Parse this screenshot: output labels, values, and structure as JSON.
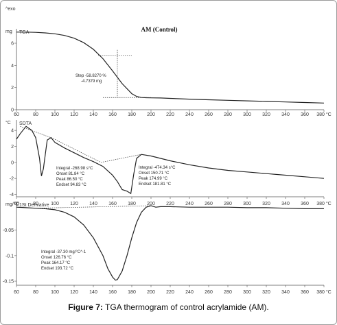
{
  "exo_label": "^exo",
  "caption": {
    "label": "Figure 7:",
    "text": "TGA thermogram of control acrylamide (AM)."
  },
  "chart_data": [
    {
      "type": "line",
      "title": "AM (Control)",
      "series_label": "TGA",
      "y_unit": "mg",
      "x_ticks": [
        "60",
        "80",
        "100",
        "120",
        "140",
        "160",
        "180",
        "200",
        "220",
        "240",
        "260",
        "280",
        "300",
        "320",
        "340",
        "360",
        "380 °C"
      ],
      "y_ticks": [
        "0",
        "2",
        "4",
        "6"
      ],
      "xlim": [
        60,
        380
      ],
      "ylim": [
        0,
        7.3
      ],
      "series": [
        {
          "x": [
            60,
            70,
            80,
            90,
            100,
            110,
            120,
            130,
            140,
            150,
            160,
            170,
            180,
            185,
            190,
            195,
            200,
            210,
            220,
            240,
            260,
            280,
            300,
            320,
            340,
            360,
            380
          ],
          "values": [
            7.0,
            7.0,
            6.98,
            6.93,
            6.85,
            6.7,
            6.45,
            6.05,
            5.45,
            4.6,
            3.5,
            2.35,
            1.45,
            1.2,
            1.1,
            1.08,
            1.07,
            1.06,
            1.02,
            0.95,
            0.9,
            0.85,
            0.8,
            0.75,
            0.7,
            0.65,
            0.6
          ]
        }
      ],
      "annotations": [
        "Step  -58.8270 %",
        "-4.7379 mg"
      ]
    },
    {
      "type": "line",
      "series_label": "SDTA",
      "y_unit": "°C",
      "x_ticks": [
        "60",
        "80",
        "100",
        "120",
        "140",
        "160",
        "180",
        "200",
        "220",
        "240",
        "260",
        "280",
        "300",
        "320",
        "340",
        "360",
        "380 °C"
      ],
      "y_ticks": [
        "-4",
        "-2",
        "0",
        "2",
        "4"
      ],
      "xlim": [
        60,
        380
      ],
      "ylim": [
        -4.3,
        5.3
      ],
      "series": [
        {
          "x": [
            60,
            64,
            70,
            76,
            80,
            84,
            86,
            88,
            90,
            92,
            96,
            100,
            110,
            120,
            130,
            140,
            150,
            160,
            165,
            170,
            175,
            179,
            182,
            185,
            190,
            200,
            220,
            240,
            260,
            280,
            300,
            320,
            340,
            360,
            380
          ],
          "values": [
            2.9,
            3.6,
            4.5,
            4.0,
            3.1,
            0.5,
            -1.7,
            -0.8,
            1.0,
            2.8,
            3.1,
            2.5,
            1.8,
            1.2,
            0.6,
            0.1,
            -0.5,
            -1.6,
            -2.4,
            -3.4,
            -3.6,
            -3.9,
            -1.5,
            0.5,
            1.0,
            0.8,
            0.2,
            -0.3,
            -0.7,
            -1.0,
            -1.2,
            -1.4,
            -1.6,
            -1.8,
            -2.0
          ]
        }
      ],
      "annotations": [
        [
          "Integral  -268.98 s°C",
          "Onset   81.84 °C",
          "Peak    86.50 °C",
          "Endset  94.83 °C"
        ],
        [
          "Integral  -474.34 s°C",
          "Onset   150.71 °C",
          "Peak    174.99 °C",
          "Endset  181.81 °C"
        ]
      ]
    },
    {
      "type": "line",
      "series_label": "1St Derivative",
      "y_unit": "mg/°C",
      "x_ticks": [
        "60",
        "80",
        "100",
        "120",
        "140",
        "160",
        "180",
        "200",
        "220",
        "240",
        "260",
        "280",
        "300",
        "320",
        "340",
        "360",
        "380 °C"
      ],
      "y_ticks": [
        "-0.05",
        "-0.1",
        "-0.15"
      ],
      "xlim": [
        60,
        380
      ],
      "ylim": [
        -0.158,
        0.006
      ],
      "series": [
        {
          "x": [
            60,
            70,
            80,
            90,
            100,
            110,
            120,
            130,
            140,
            150,
            155,
            160,
            163,
            165,
            170,
            175,
            180,
            185,
            190,
            195,
            200,
            205,
            210,
            220,
            240,
            260,
            280,
            300,
            320,
            340,
            360,
            380
          ],
          "values": [
            -0.005,
            -0.006,
            -0.007,
            -0.008,
            -0.01,
            -0.015,
            -0.024,
            -0.04,
            -0.065,
            -0.1,
            -0.125,
            -0.142,
            -0.148,
            -0.147,
            -0.13,
            -0.1,
            -0.065,
            -0.035,
            -0.015,
            -0.005,
            -0.002,
            -0.005,
            -0.004,
            -0.004,
            -0.005,
            -0.005,
            -0.005,
            -0.006,
            -0.006,
            -0.007,
            -0.008,
            -0.008
          ]
        }
      ],
      "annotations": [
        "Integral  -37.30 mg/°C^-1",
        "Onset   126.76 °C",
        "Peak    164.17 °C",
        "Endset  193.72 °C"
      ]
    }
  ]
}
